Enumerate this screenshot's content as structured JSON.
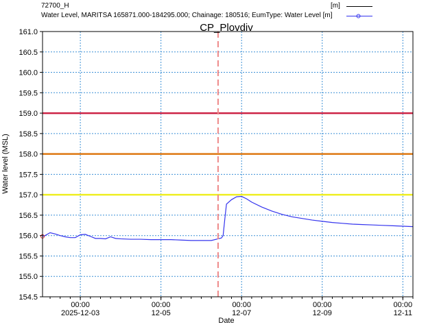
{
  "legend": [
    {
      "label": "72700_H",
      "unit": "[m]",
      "color": "#000000",
      "marker": "none"
    },
    {
      "label": "Water Level, MARITSA 165871.000-184295.000; Chainage: 180516; EumType: Water Level [m]",
      "unit": "",
      "color": "#3333ee",
      "marker": "circle"
    }
  ],
  "chart_data": {
    "type": "line",
    "title": "CP_Plovdiv",
    "xlabel": "Date",
    "ylabel": "Water level (MSL)",
    "xlim": [
      "2025-12-02T01:30",
      "2025-12-11T06:00"
    ],
    "ylim": [
      154.5,
      161.0
    ],
    "y_ticks": [
      154.5,
      155.0,
      155.5,
      156.0,
      156.5,
      157.0,
      157.5,
      158.0,
      158.5,
      159.0,
      159.5,
      160.0,
      160.5,
      161.0
    ],
    "x_ticks": [
      {
        "x": "2025-12-03T00:00",
        "time": "00:00",
        "date": "2025-12-03"
      },
      {
        "x": "2025-12-05T00:00",
        "time": "00:00",
        "date": "12-05"
      },
      {
        "x": "2025-12-07T00:00",
        "time": "00:00",
        "date": "12-07"
      },
      {
        "x": "2025-12-09T00:00",
        "time": "00:00",
        "date": "12-09"
      },
      {
        "x": "2025-12-11T00:00",
        "time": "00:00",
        "date": "12-11"
      }
    ],
    "grid": true,
    "threshold_lines": [
      {
        "y": 159.0,
        "color": "#cc2244"
      },
      {
        "y": 158.0,
        "color": "#dd7711"
      },
      {
        "y": 157.0,
        "color": "#eeee22"
      }
    ],
    "current_time_marker": {
      "x": "2025-12-06T10:00",
      "color": "#ee8888"
    },
    "series": [
      {
        "name": "72700_H",
        "color": "#3333ee",
        "x": [
          "2025-12-02T01:30",
          "2025-12-02T03:00",
          "2025-12-02T06:00",
          "2025-12-02T09:00",
          "2025-12-02T12:00",
          "2025-12-02T15:00",
          "2025-12-02T18:00",
          "2025-12-02T21:00",
          "2025-12-03T00:00",
          "2025-12-03T03:00",
          "2025-12-03T06:00",
          "2025-12-03T09:00",
          "2025-12-03T12:00",
          "2025-12-03T15:00",
          "2025-12-03T18:00",
          "2025-12-03T21:00",
          "2025-12-04T00:00",
          "2025-12-04T06:00",
          "2025-12-04T12:00",
          "2025-12-04T18:00",
          "2025-12-05T00:00",
          "2025-12-05T06:00",
          "2025-12-05T12:00",
          "2025-12-05T18:00",
          "2025-12-06T00:00",
          "2025-12-06T06:00",
          "2025-12-06T10:00",
          "2025-12-06T12:00",
          "2025-12-06T13:00",
          "2025-12-06T14:00",
          "2025-12-06T15:00",
          "2025-12-06T18:00",
          "2025-12-06T21:00",
          "2025-12-07T00:00",
          "2025-12-07T03:00",
          "2025-12-07T06:00",
          "2025-12-07T12:00",
          "2025-12-07T18:00",
          "2025-12-08T00:00",
          "2025-12-08T06:00",
          "2025-12-08T12:00",
          "2025-12-08T18:00",
          "2025-12-09T00:00",
          "2025-12-09T06:00",
          "2025-12-09T12:00",
          "2025-12-09T18:00",
          "2025-12-10T00:00",
          "2025-12-10T06:00",
          "2025-12-10T12:00",
          "2025-12-10T18:00",
          "2025-12-11T00:00",
          "2025-12-11T06:00"
        ],
        "y": [
          155.98,
          156.0,
          156.07,
          156.04,
          156.0,
          155.97,
          155.95,
          155.95,
          156.02,
          156.03,
          155.98,
          155.93,
          155.93,
          155.92,
          155.97,
          155.93,
          155.92,
          155.91,
          155.91,
          155.9,
          155.9,
          155.9,
          155.89,
          155.88,
          155.88,
          155.88,
          155.92,
          155.94,
          156.0,
          156.4,
          156.77,
          156.88,
          156.95,
          156.96,
          156.9,
          156.82,
          156.7,
          156.6,
          156.52,
          156.46,
          156.42,
          156.38,
          156.35,
          156.32,
          156.3,
          156.28,
          156.27,
          156.26,
          156.25,
          156.24,
          156.23,
          156.22
        ]
      }
    ]
  }
}
